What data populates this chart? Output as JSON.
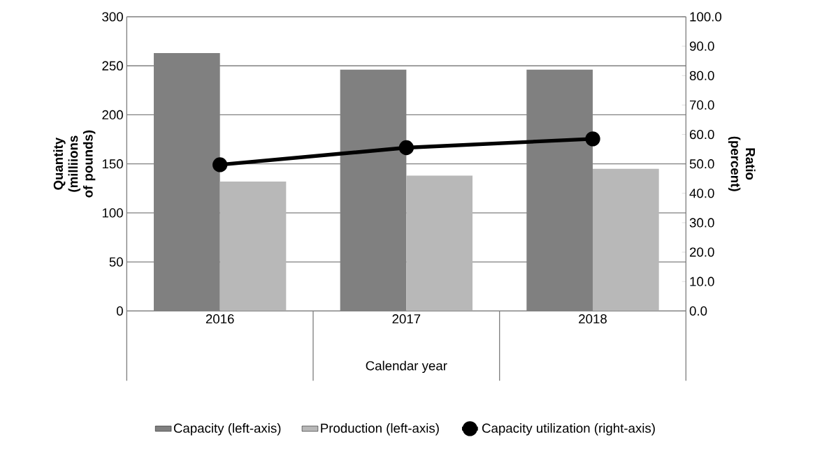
{
  "chart_data": {
    "type": "bar",
    "categories": [
      "2016",
      "2017",
      "2018"
    ],
    "xlabel": "Calendar year",
    "ylabel": "Quantity (milliions of pounds)",
    "y2label": "Ratio (percent)",
    "series": [
      {
        "name": "Capacity (left-axis)",
        "color": "#808080",
        "values": [
          263,
          246,
          246
        ]
      },
      {
        "name": "Production (left-axis)",
        "color": "#b8b8b8",
        "values": [
          132,
          138,
          145
        ]
      },
      {
        "name": "Capacity utilization (right-axis)",
        "type": "line",
        "axis": "y2",
        "color": "#000000",
        "values": [
          49.7,
          55.5,
          58.5
        ]
      }
    ],
    "ylim": [
      0,
      300
    ],
    "yticks": [
      0,
      50,
      100,
      150,
      200,
      250,
      300
    ],
    "y2lim": [
      0,
      100
    ],
    "y2ticks": [
      {
        "value": 0,
        "label": "0.0"
      },
      {
        "value": 10,
        "label": "10.0"
      },
      {
        "value": 20,
        "label": "20.0"
      },
      {
        "value": 30,
        "label": "30.0"
      },
      {
        "value": 40,
        "label": "40.0"
      },
      {
        "value": 50,
        "label": "50.0"
      },
      {
        "value": 60,
        "label": "60.0"
      },
      {
        "value": 70,
        "label": "70.0"
      },
      {
        "value": 80,
        "label": "80.0"
      },
      {
        "value": 90,
        "label": "90.0"
      },
      {
        "value": 100,
        "label": "100.0"
      }
    ],
    "grid": "y",
    "legend": "bottom",
    "marker": "circle"
  }
}
